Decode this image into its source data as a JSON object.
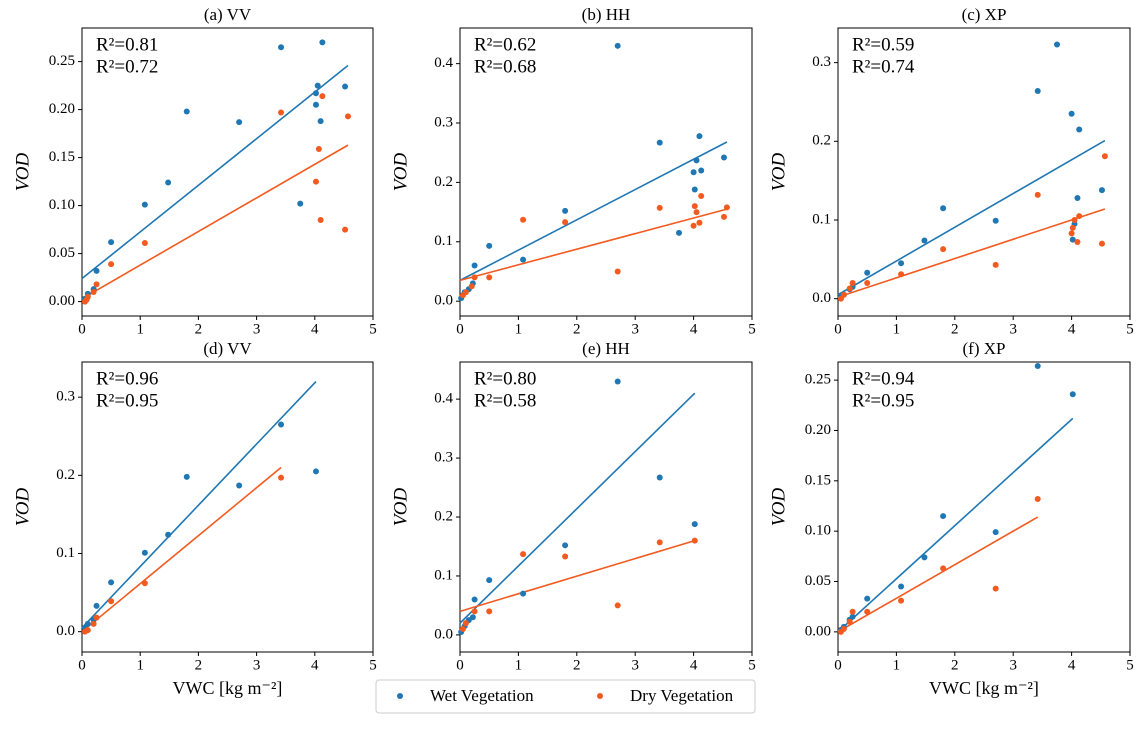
{
  "chart_data": [
    {
      "type": "scatter",
      "title": "(a) VV",
      "ylabel": "VOD",
      "xlim": [
        0,
        5
      ],
      "xticks": [
        0,
        1,
        2,
        3,
        4,
        5
      ],
      "ylim": [
        -0.015,
        0.285
      ],
      "yticks": [
        {
          "value": 0,
          "label": "0.00"
        },
        0.05,
        {
          "value": 0.1,
          "label": "0.10"
        },
        0.15,
        {
          "value": 0.2,
          "label": "0.20"
        },
        0.25
      ],
      "series": [
        {
          "name": "Wet Vegetation",
          "color": "#1f77b4",
          "x": [
            0.05,
            0.1,
            0.2,
            0.25,
            0.5,
            1.08,
            1.48,
            1.8,
            2.7,
            3.42,
            3.75,
            4.02,
            4.02,
            4.05,
            4.1,
            4.13,
            4.52
          ],
          "values": [
            0.003,
            0.008,
            0.013,
            0.032,
            0.062,
            0.101,
            0.124,
            0.198,
            0.187,
            0.265,
            0.102,
            0.217,
            0.205,
            0.225,
            0.188,
            0.27,
            0.224
          ],
          "fit_x": [
            0,
            4.57
          ],
          "fit_values": [
            0.024,
            0.246
          ]
        },
        {
          "name": "Dry Vegetation",
          "color": "#f35a1f",
          "x": [
            0.05,
            0.08,
            0.1,
            0.2,
            0.25,
            0.5,
            1.08,
            3.42,
            4.02,
            4.07,
            4.1,
            4.13,
            4.52,
            4.57
          ],
          "values": [
            0.0,
            0.002,
            0.005,
            0.01,
            0.018,
            0.039,
            0.061,
            0.197,
            0.125,
            0.159,
            0.085,
            0.214,
            0.075,
            0.193
          ],
          "fit_x": [
            0,
            4.57
          ],
          "fit_values": [
            0.003,
            0.163
          ]
        }
      ],
      "annotations": [
        {
          "text": "R²=0.81",
          "color": "#1f77b4"
        },
        {
          "text": "R²=0.72",
          "color": "#f35a1f"
        }
      ]
    },
    {
      "type": "scatter",
      "title": "(b) HH",
      "ylabel": "VOD",
      "xlim": [
        0,
        5
      ],
      "xticks": [
        0,
        1,
        2,
        3,
        4,
        5
      ],
      "ylim": [
        -0.025,
        0.46
      ],
      "yticks": [
        {
          "value": 0,
          "label": "0.0"
        },
        0.1,
        0.2,
        0.3,
        0.4
      ],
      "series": [
        {
          "color": "#1f77b4",
          "x": [
            0.02,
            0.08,
            0.15,
            0.22,
            0.25,
            0.5,
            1.08,
            1.8,
            2.7,
            3.42,
            3.75,
            4.0,
            4.02,
            4.05,
            4.1,
            4.13,
            4.52
          ],
          "values": [
            0.005,
            0.015,
            0.02,
            0.03,
            0.06,
            0.093,
            0.07,
            0.152,
            0.43,
            0.267,
            0.115,
            0.217,
            0.188,
            0.237,
            0.278,
            0.22,
            0.242
          ],
          "fit_x": [
            0,
            4.57
          ],
          "fit_values": [
            0.035,
            0.268
          ]
        },
        {
          "color": "#f35a1f",
          "x": [
            0.05,
            0.1,
            0.2,
            0.25,
            0.5,
            1.08,
            1.8,
            2.7,
            3.42,
            4.0,
            4.02,
            4.05,
            4.1,
            4.13,
            4.52,
            4.57
          ],
          "values": [
            0.01,
            0.015,
            0.025,
            0.04,
            0.04,
            0.137,
            0.133,
            0.05,
            0.157,
            0.127,
            0.16,
            0.15,
            0.132,
            0.177,
            0.142,
            0.158
          ],
          "fit_x": [
            0,
            4.57
          ],
          "fit_values": [
            0.035,
            0.155
          ]
        }
      ],
      "annotations": [
        {
          "text": "R²=0.62",
          "color": "#1f77b4"
        },
        {
          "text": "R²=0.68",
          "color": "#f35a1f"
        }
      ]
    },
    {
      "type": "scatter",
      "title": "(c) XP",
      "ylabel": "VOD",
      "xlim": [
        0,
        5
      ],
      "xticks": [
        0,
        1,
        2,
        3,
        4,
        5
      ],
      "ylim": [
        -0.022,
        0.344
      ],
      "yticks": [
        {
          "value": 0,
          "label": "0.0"
        },
        0.1,
        0.2,
        0.3
      ],
      "series": [
        {
          "color": "#1f77b4",
          "x": [
            0.05,
            0.1,
            0.2,
            0.25,
            0.5,
            1.08,
            1.48,
            1.8,
            2.7,
            3.42,
            3.75,
            4.0,
            4.02,
            4.05,
            4.1,
            4.13,
            4.52
          ],
          "values": [
            0.002,
            0.005,
            0.012,
            0.015,
            0.033,
            0.045,
            0.074,
            0.115,
            0.099,
            0.264,
            0.323,
            0.235,
            0.075,
            0.095,
            0.128,
            0.215,
            0.138
          ],
          "fit_x": [
            0,
            4.57
          ],
          "fit_values": [
            0.005,
            0.201
          ]
        },
        {
          "color": "#f35a1f",
          "x": [
            0.05,
            0.1,
            0.2,
            0.25,
            0.5,
            1.08,
            1.8,
            2.7,
            3.42,
            4.0,
            4.02,
            4.05,
            4.1,
            4.13,
            4.52,
            4.57
          ],
          "values": [
            0.0,
            0.005,
            0.013,
            0.02,
            0.02,
            0.031,
            0.063,
            0.043,
            0.132,
            0.083,
            0.09,
            0.1,
            0.072,
            0.105,
            0.07,
            0.181
          ],
          "fit_x": [
            0,
            4.57
          ],
          "fit_values": [
            0.002,
            0.114
          ]
        }
      ],
      "annotations": [
        {
          "text": "R²=0.59",
          "color": "#1f77b4"
        },
        {
          "text": "R²=0.74",
          "color": "#f35a1f"
        }
      ]
    },
    {
      "type": "scatter",
      "title": "(d) VV",
      "ylabel": "VOD",
      "xlabel": "VWC [kg m⁻²]",
      "xlim": [
        0,
        5
      ],
      "xticks": [
        0,
        1,
        2,
        3,
        4,
        5
      ],
      "ylim": [
        -0.026,
        0.345
      ],
      "yticks": [
        {
          "value": 0,
          "label": "0.0"
        },
        0.1,
        0.2,
        0.3
      ],
      "series": [
        {
          "color": "#1f77b4",
          "x": [
            0.05,
            0.1,
            0.2,
            0.25,
            0.5,
            1.08,
            1.48,
            1.8,
            2.7,
            3.42,
            4.02
          ],
          "values": [
            0.005,
            0.01,
            0.015,
            0.033,
            0.063,
            0.101,
            0.124,
            0.198,
            0.187,
            0.265,
            0.205
          ],
          "fit_x": [
            0,
            4.02
          ],
          "fit_values": [
            0.005,
            0.32
          ]
        },
        {
          "color": "#f35a1f",
          "x": [
            0.05,
            0.1,
            0.2,
            0.25,
            0.5,
            1.08,
            3.42
          ],
          "values": [
            0.0,
            0.002,
            0.01,
            0.018,
            0.039,
            0.062,
            0.197
          ],
          "fit_x": [
            0,
            3.42
          ],
          "fit_values": [
            0.0,
            0.21
          ]
        }
      ],
      "annotations": [
        {
          "text": "R²=0.96",
          "color": "#1f77b4"
        },
        {
          "text": "R²=0.95",
          "color": "#f35a1f"
        }
      ]
    },
    {
      "type": "scatter",
      "title": "(e) HH",
      "ylabel": "VOD",
      "xlabel": "VWC [kg m⁻²]",
      "xlim": [
        0,
        5
      ],
      "xticks": [
        0,
        1,
        2,
        3,
        4,
        5
      ],
      "ylim": [
        -0.029,
        0.463
      ],
      "yticks": [
        {
          "value": 0,
          "label": "0.0"
        },
        0.1,
        0.2,
        0.3,
        0.4
      ],
      "series": [
        {
          "color": "#1f77b4",
          "x": [
            0.02,
            0.08,
            0.15,
            0.22,
            0.25,
            0.5,
            1.08,
            1.8,
            2.7,
            3.42,
            4.02
          ],
          "values": [
            0.005,
            0.015,
            0.025,
            0.03,
            0.06,
            0.093,
            0.07,
            0.152,
            0.43,
            0.267,
            0.188
          ],
          "fit_x": [
            0,
            4.02
          ],
          "fit_values": [
            0.02,
            0.41
          ]
        },
        {
          "color": "#f35a1f",
          "x": [
            0.05,
            0.1,
            0.25,
            0.5,
            1.08,
            1.8,
            2.7,
            3.42,
            4.02
          ],
          "values": [
            0.01,
            0.02,
            0.04,
            0.04,
            0.137,
            0.133,
            0.05,
            0.157,
            0.16
          ],
          "fit_x": [
            0,
            4.02
          ],
          "fit_values": [
            0.04,
            0.16
          ]
        }
      ],
      "annotations": [
        {
          "text": "R²=0.80",
          "color": "#1f77b4"
        },
        {
          "text": "R²=0.58",
          "color": "#f35a1f"
        }
      ]
    },
    {
      "type": "scatter",
      "title": "(f) XP",
      "ylabel": "VOD",
      "xlabel": "VWC [kg m⁻²]",
      "xlim": [
        0,
        5
      ],
      "xticks": [
        0,
        1,
        2,
        3,
        4,
        5
      ],
      "ylim": [
        -0.02,
        0.268
      ],
      "yticks": [
        {
          "value": 0,
          "label": "0.00"
        },
        0.05,
        {
          "value": 0.1,
          "label": "0.10"
        },
        0.15,
        {
          "value": 0.2,
          "label": "0.20"
        },
        0.25
      ],
      "series": [
        {
          "color": "#1f77b4",
          "x": [
            0.05,
            0.1,
            0.2,
            0.25,
            0.5,
            1.08,
            1.48,
            1.8,
            2.7,
            3.42,
            4.02
          ],
          "values": [
            0.002,
            0.005,
            0.012,
            0.015,
            0.033,
            0.045,
            0.074,
            0.115,
            0.099,
            0.264,
            0.236
          ],
          "fit_x": [
            0,
            4.02
          ],
          "fit_values": [
            0.0,
            0.212
          ]
        },
        {
          "color": "#f35a1f",
          "x": [
            0.05,
            0.1,
            0.2,
            0.25,
            0.5,
            1.08,
            1.8,
            2.7,
            3.42
          ],
          "values": [
            0.0,
            0.003,
            0.01,
            0.02,
            0.02,
            0.031,
            0.063,
            0.043,
            0.132
          ],
          "fit_x": [
            0,
            3.42
          ],
          "fit_values": [
            0.0,
            0.114
          ]
        }
      ],
      "annotations": [
        {
          "text": "R²=0.94",
          "color": "#1f77b4"
        },
        {
          "text": "R²=0.95",
          "color": "#f35a1f"
        }
      ]
    }
  ]
}
